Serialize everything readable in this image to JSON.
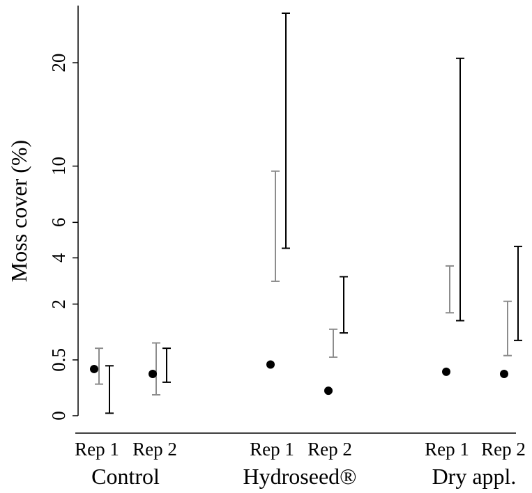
{
  "chart_data": {
    "type": "scatter",
    "ylabel": "Moss cover (%)",
    "yscale": "sqrt",
    "ylim": [
      0,
      27
    ],
    "yticks": [
      {
        "value": 0,
        "label": "0"
      },
      {
        "value": 0.5,
        "label": "0.5"
      },
      {
        "value": 2,
        "label": "2"
      },
      {
        "value": 4,
        "label": "4"
      },
      {
        "value": 6,
        "label": "6"
      },
      {
        "value": 10,
        "label": "10"
      },
      {
        "value": 20,
        "label": "20"
      }
    ],
    "groups": [
      "Control",
      "Hydroseed®",
      "Dry appl."
    ],
    "categories": [
      "Rep 1",
      "Rep 2",
      "Rep 1",
      "Rep 2",
      "Rep 1",
      "Rep 2"
    ],
    "points": [
      {
        "group": "Control",
        "rep": "Rep 1",
        "value": 0.35
      },
      {
        "group": "Control",
        "rep": "Rep 2",
        "value": 0.28
      },
      {
        "group": "Hydroseed®",
        "rep": "Rep 1",
        "value": 0.42
      },
      {
        "group": "Hydroseed®",
        "rep": "Rep 2",
        "value": 0.1
      },
      {
        "group": "Dry appl.",
        "rep": "Rep 1",
        "value": 0.31
      },
      {
        "group": "Dry appl.",
        "rep": "Rep 2",
        "value": 0.28
      }
    ],
    "intervals": {
      "grey": {
        "color": "#8c8c8c",
        "ranges": [
          [
            0.16,
            0.73
          ],
          [
            0.07,
            0.85
          ],
          [
            2.9,
            9.6
          ],
          [
            0.55,
            1.2
          ],
          [
            1.7,
            3.6
          ],
          [
            0.58,
            2.1
          ]
        ]
      },
      "black": {
        "color": "#000000",
        "ranges": [
          [
            0.001,
            0.4
          ],
          [
            0.18,
            0.73
          ],
          [
            4.5,
            26
          ],
          [
            1.1,
            3.1
          ],
          [
            1.45,
            20.5
          ],
          [
            0.91,
            4.6
          ]
        ]
      }
    }
  }
}
